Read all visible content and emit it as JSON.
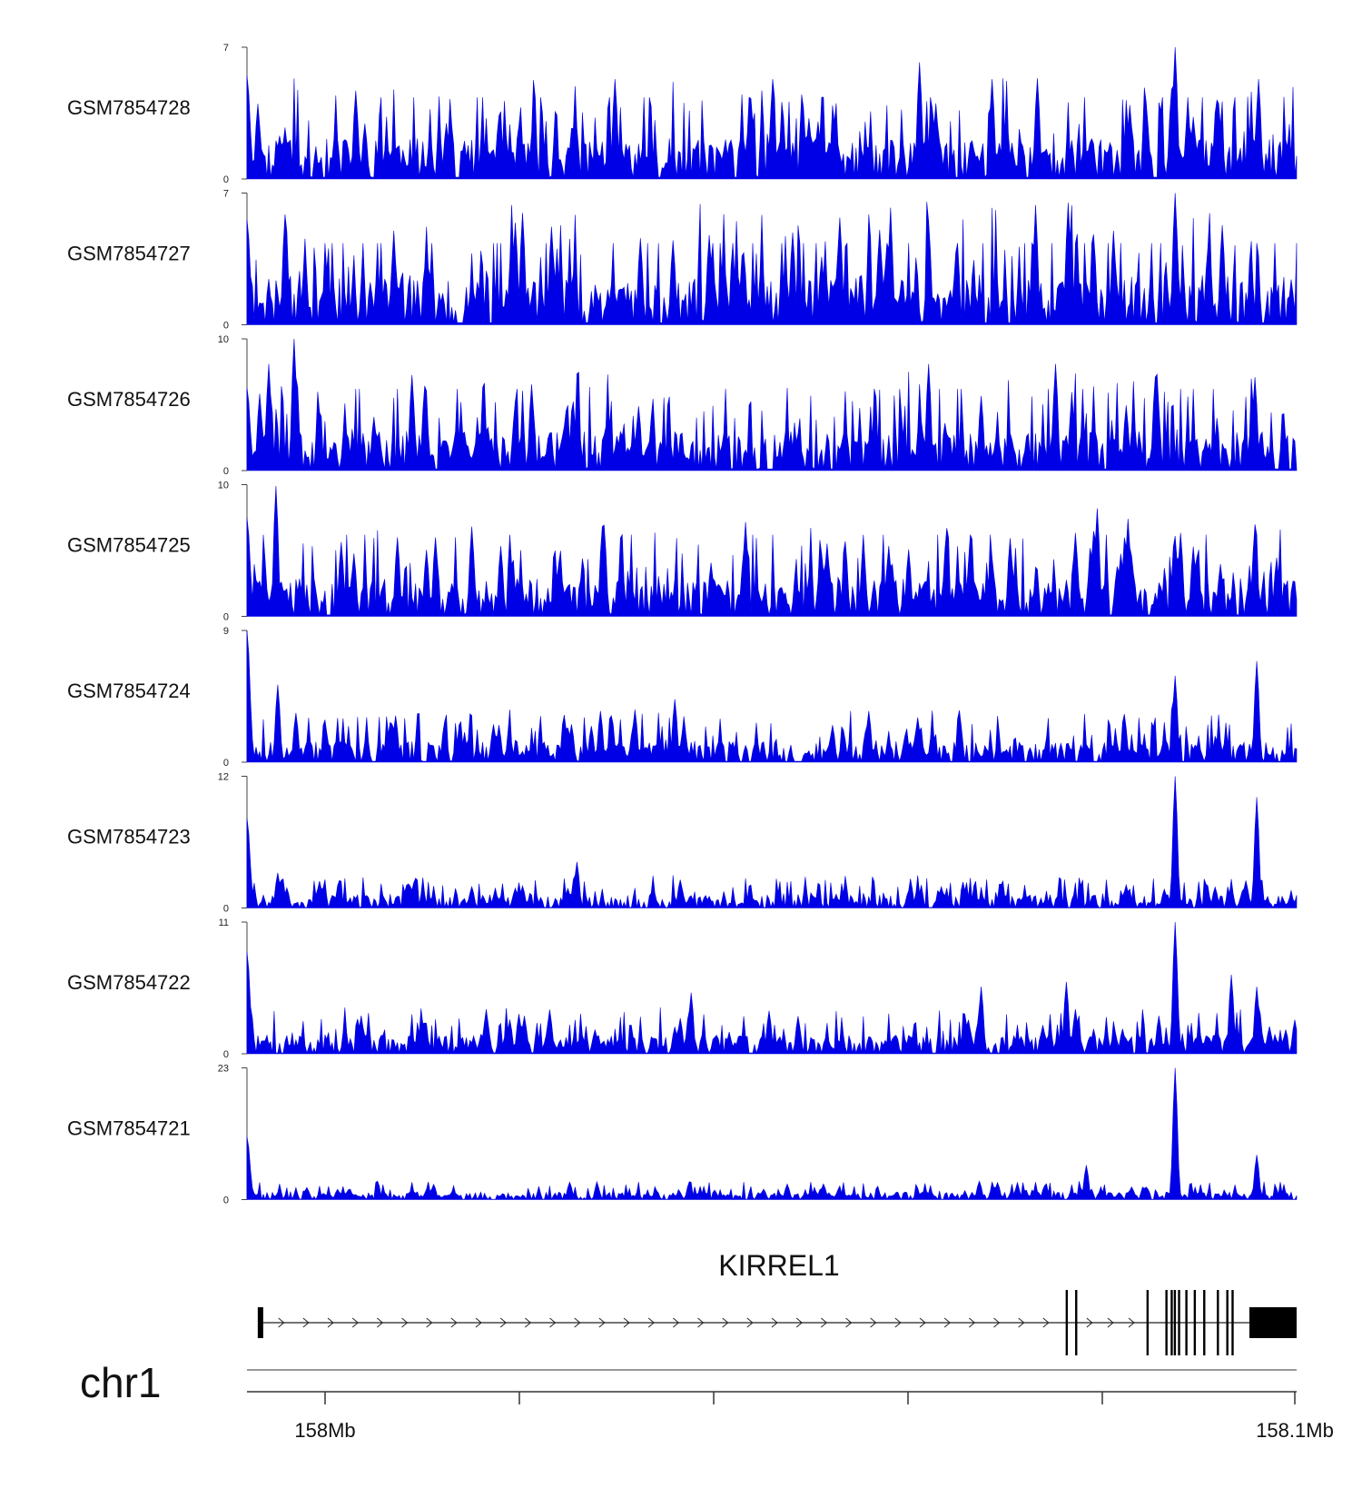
{
  "chart_data": {
    "type": "area",
    "title": "",
    "xlabel": "chr1",
    "x_ticks": [
      "158Mb",
      "158.1Mb"
    ],
    "fill_color": "#0000e6",
    "tracks": [
      {
        "name": "GSM7854728",
        "ymax": 7,
        "ymin": 0,
        "seed": 11,
        "base": 1.8,
        "start_peak": 5.5,
        "peaks": [
          [
            0.35,
            5.3
          ],
          [
            0.5,
            5.3
          ],
          [
            0.64,
            6.2
          ],
          [
            0.71,
            5.3
          ],
          [
            0.885,
            7.0
          ],
          [
            0.963,
            5.3
          ]
        ]
      },
      {
        "name": "GSM7854727",
        "ymax": 7,
        "ymin": 0,
        "seed": 23,
        "base": 2.2,
        "start_peak": 5.6,
        "peaks": [
          [
            0.14,
            4.7
          ],
          [
            0.375,
            4.6
          ],
          [
            0.52,
            4.9
          ],
          [
            0.65,
            5.5
          ],
          [
            0.825,
            4.8
          ],
          [
            0.885,
            7.0
          ]
        ]
      },
      {
        "name": "GSM7854726",
        "ymax": 10,
        "ymin": 0,
        "seed": 37,
        "base": 2.5,
        "start_peak": 6.3,
        "peaks": [
          [
            0.02,
            8.1
          ],
          [
            0.045,
            10.0
          ],
          [
            0.65,
            8.1
          ],
          [
            0.77,
            8.1
          ],
          [
            0.865,
            7.1
          ],
          [
            0.96,
            7.1
          ]
        ]
      },
      {
        "name": "GSM7854725",
        "ymax": 10,
        "ymin": 0,
        "seed": 41,
        "base": 2.4,
        "start_peak": 7.5,
        "peaks": [
          [
            0.028,
            9.9
          ],
          [
            0.144,
            6.0
          ],
          [
            0.18,
            6.0
          ],
          [
            0.57,
            5.7
          ],
          [
            0.81,
            8.2
          ],
          [
            0.84,
            7.4
          ],
          [
            0.885,
            6.1
          ]
        ]
      },
      {
        "name": "GSM7854724",
        "ymax": 9,
        "ymin": 0,
        "seed": 53,
        "base": 1.2,
        "start_peak": 9.0,
        "peaks": [
          [
            0.03,
            5.3
          ],
          [
            0.408,
            4.3
          ],
          [
            0.593,
            3.5
          ],
          [
            0.885,
            5.9
          ],
          [
            0.962,
            6.9
          ]
        ]
      },
      {
        "name": "GSM7854723",
        "ymax": 12,
        "ymin": 0,
        "seed": 67,
        "base": 1.0,
        "start_peak": 8.2,
        "peaks": [
          [
            0.03,
            3.2
          ],
          [
            0.315,
            4.2
          ],
          [
            0.885,
            12.0
          ],
          [
            0.962,
            10.1
          ]
        ]
      },
      {
        "name": "GSM7854722",
        "ymax": 11,
        "ymin": 0,
        "seed": 71,
        "base": 1.3,
        "start_peak": 8.5,
        "peaks": [
          [
            0.423,
            5.1
          ],
          [
            0.7,
            5.6
          ],
          [
            0.78,
            6.0
          ],
          [
            0.885,
            11.0
          ],
          [
            0.937,
            6.6
          ],
          [
            0.962,
            5.6
          ]
        ]
      },
      {
        "name": "GSM7854721",
        "ymax": 23,
        "ymin": 0,
        "seed": 83,
        "base": 1.1,
        "start_peak": 11.0,
        "peaks": [
          [
            0.8,
            6.0
          ],
          [
            0.885,
            23.0
          ],
          [
            0.962,
            7.8
          ]
        ]
      }
    ],
    "gene": {
      "name": "KIRREL1",
      "strand": "+",
      "exons": [
        0.015,
        0.781,
        0.79,
        0.858,
        0.876,
        0.881,
        0.884,
        0.888,
        0.895,
        0.903,
        0.912,
        0.925,
        0.934,
        0.939
      ]
    }
  }
}
